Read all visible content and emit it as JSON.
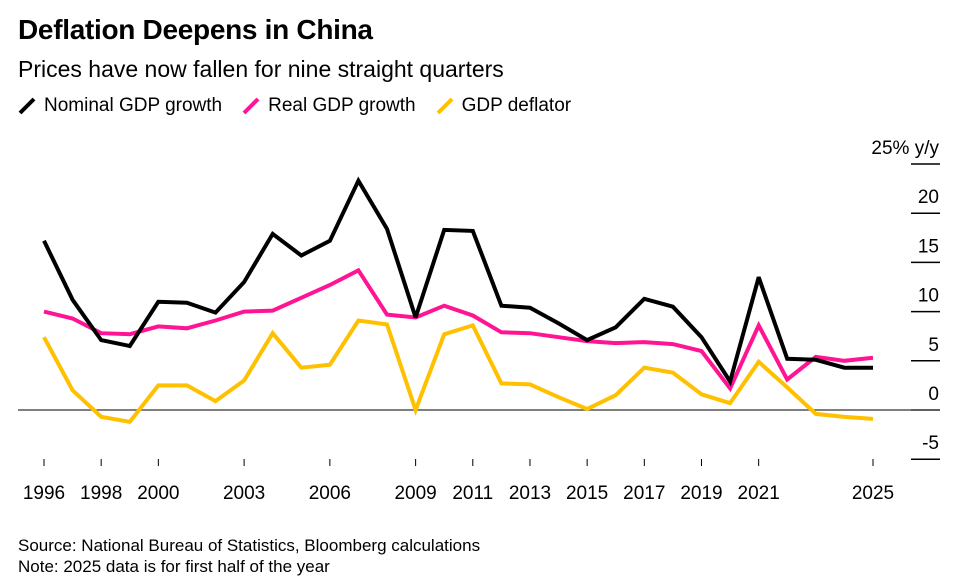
{
  "header": {
    "title": "Deflation Deepens in China",
    "subtitle": "Prices have now fallen for nine straight quarters"
  },
  "legend": [
    {
      "label": "Nominal GDP growth",
      "color": "#000000",
      "icon": "diagonal-line-swatch"
    },
    {
      "label": "Real GDP growth",
      "color": "#ff1493",
      "icon": "diagonal-line-swatch"
    },
    {
      "label": "GDP deflator",
      "color": "#ffc000",
      "icon": "diagonal-line-swatch"
    }
  ],
  "footer": {
    "source": "Source: National Bureau of Statistics, Bloomberg calculations",
    "note": "Note: 2025 data is for first half of the year"
  },
  "chart_data": {
    "type": "line",
    "title": "Deflation Deepens in China",
    "subtitle": "Prices have now fallen for nine straight quarters",
    "xlabel": "",
    "ylabel": "% y/y",
    "x": [
      1996,
      1997,
      1998,
      1999,
      2000,
      2001,
      2002,
      2003,
      2004,
      2005,
      2006,
      2007,
      2008,
      2009,
      2010,
      2011,
      2012,
      2013,
      2014,
      2015,
      2016,
      2017,
      2018,
      2019,
      2020,
      2021,
      2022,
      2023,
      2024,
      2025
    ],
    "x_tick_labels": [
      "1996",
      "1998",
      "2000",
      "2003",
      "2006",
      "2009",
      "2011",
      "2013",
      "2015",
      "2017",
      "2019",
      "2021",
      "2025"
    ],
    "x_tick_values": [
      1996,
      1998,
      2000,
      2003,
      2006,
      2009,
      2011,
      2013,
      2015,
      2017,
      2019,
      2021,
      2025
    ],
    "y_ticks": [
      25,
      20,
      15,
      10,
      5,
      0,
      -5
    ],
    "y_tick_labels": [
      "25% y/y",
      "20",
      "15",
      "10",
      "5",
      "0",
      "-5"
    ],
    "ylim": [
      -5,
      25
    ],
    "xlim": [
      1996,
      2025
    ],
    "y_axis_side": "right",
    "zero_line": true,
    "grid": false,
    "legend_position": "top-left",
    "series": [
      {
        "name": "Nominal GDP growth",
        "color": "#000000",
        "values": [
          17.2,
          11.2,
          7.1,
          6.5,
          11.0,
          10.9,
          9.9,
          13.0,
          17.9,
          15.7,
          17.2,
          23.3,
          18.4,
          9.4,
          18.3,
          18.2,
          10.6,
          10.4,
          8.8,
          7.1,
          8.4,
          11.3,
          10.5,
          7.4,
          2.9,
          13.5,
          5.2,
          5.1,
          4.3,
          4.3
        ]
      },
      {
        "name": "Real GDP growth",
        "color": "#ff1493",
        "values": [
          10.0,
          9.3,
          7.8,
          7.7,
          8.5,
          8.3,
          9.1,
          10.0,
          10.1,
          11.4,
          12.7,
          14.2,
          9.7,
          9.4,
          10.6,
          9.6,
          7.9,
          7.8,
          7.4,
          7.0,
          6.8,
          6.9,
          6.7,
          6.0,
          2.2,
          8.6,
          3.1,
          5.4,
          5.0,
          5.3
        ]
      },
      {
        "name": "GDP deflator",
        "color": "#ffc000",
        "values": [
          7.4,
          2.0,
          -0.7,
          -1.2,
          2.5,
          2.5,
          0.9,
          3.0,
          7.8,
          4.3,
          4.6,
          9.1,
          8.7,
          0.0,
          7.7,
          8.6,
          2.7,
          2.6,
          1.3,
          0.1,
          1.5,
          4.3,
          3.8,
          1.6,
          0.7,
          4.9,
          2.3,
          -0.4,
          -0.7,
          -0.9
        ]
      }
    ]
  }
}
